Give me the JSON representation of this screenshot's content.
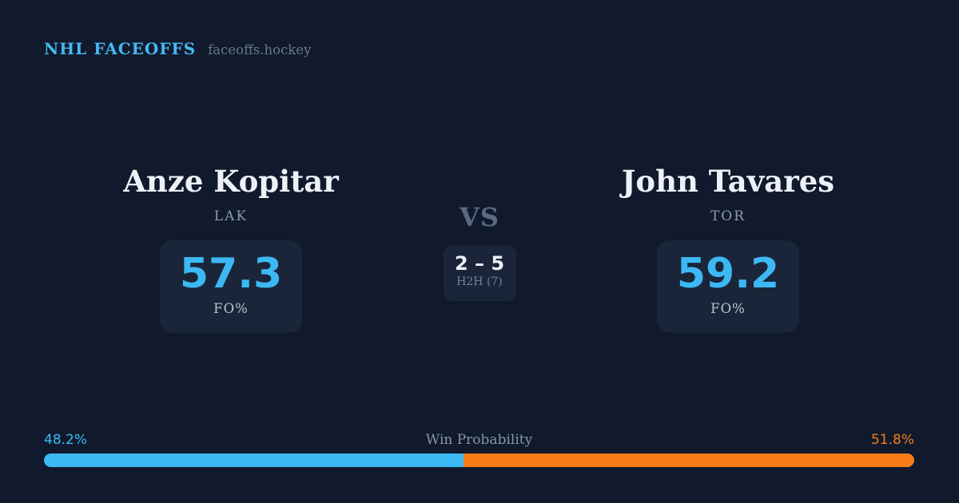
{
  "header": {
    "brand": "NHL FACEOFFS",
    "domain": "faceoffs.hockey"
  },
  "matchup": {
    "players": [
      {
        "name": "Anze Kopitar",
        "team": "LAK",
        "fo_pct": "57.3",
        "stat_label": "FO%"
      },
      {
        "name": "John Tavares",
        "team": "TOR",
        "fo_pct": "59.2",
        "stat_label": "FO%"
      }
    ],
    "vs_label": "VS",
    "h2h": {
      "score": "2 – 5",
      "label": "H2H (7)"
    }
  },
  "win_probability": {
    "label": "Win Probability",
    "left_pct_label": "48.2%",
    "right_pct_label": "51.8%",
    "left_value": 48.2,
    "right_value": 51.8
  },
  "colors": {
    "bg": "#101a2c",
    "card_bg": "#1a2539",
    "accent_blue": "#3cb8f4",
    "accent_orange": "#f87d16",
    "name_text": "#edf1f7",
    "brand_blue": "#46b8f3"
  },
  "chart_data": {
    "type": "bar",
    "title": "Win Probability",
    "orientation": "horizontal-stacked",
    "categories": [
      "Anze Kopitar (LAK)",
      "John Tavares (TOR)"
    ],
    "values": [
      48.2,
      51.8
    ],
    "unit": "%",
    "colors": [
      "#3cb8f4",
      "#f87d16"
    ],
    "legend_position": "none",
    "axis": "hidden"
  }
}
